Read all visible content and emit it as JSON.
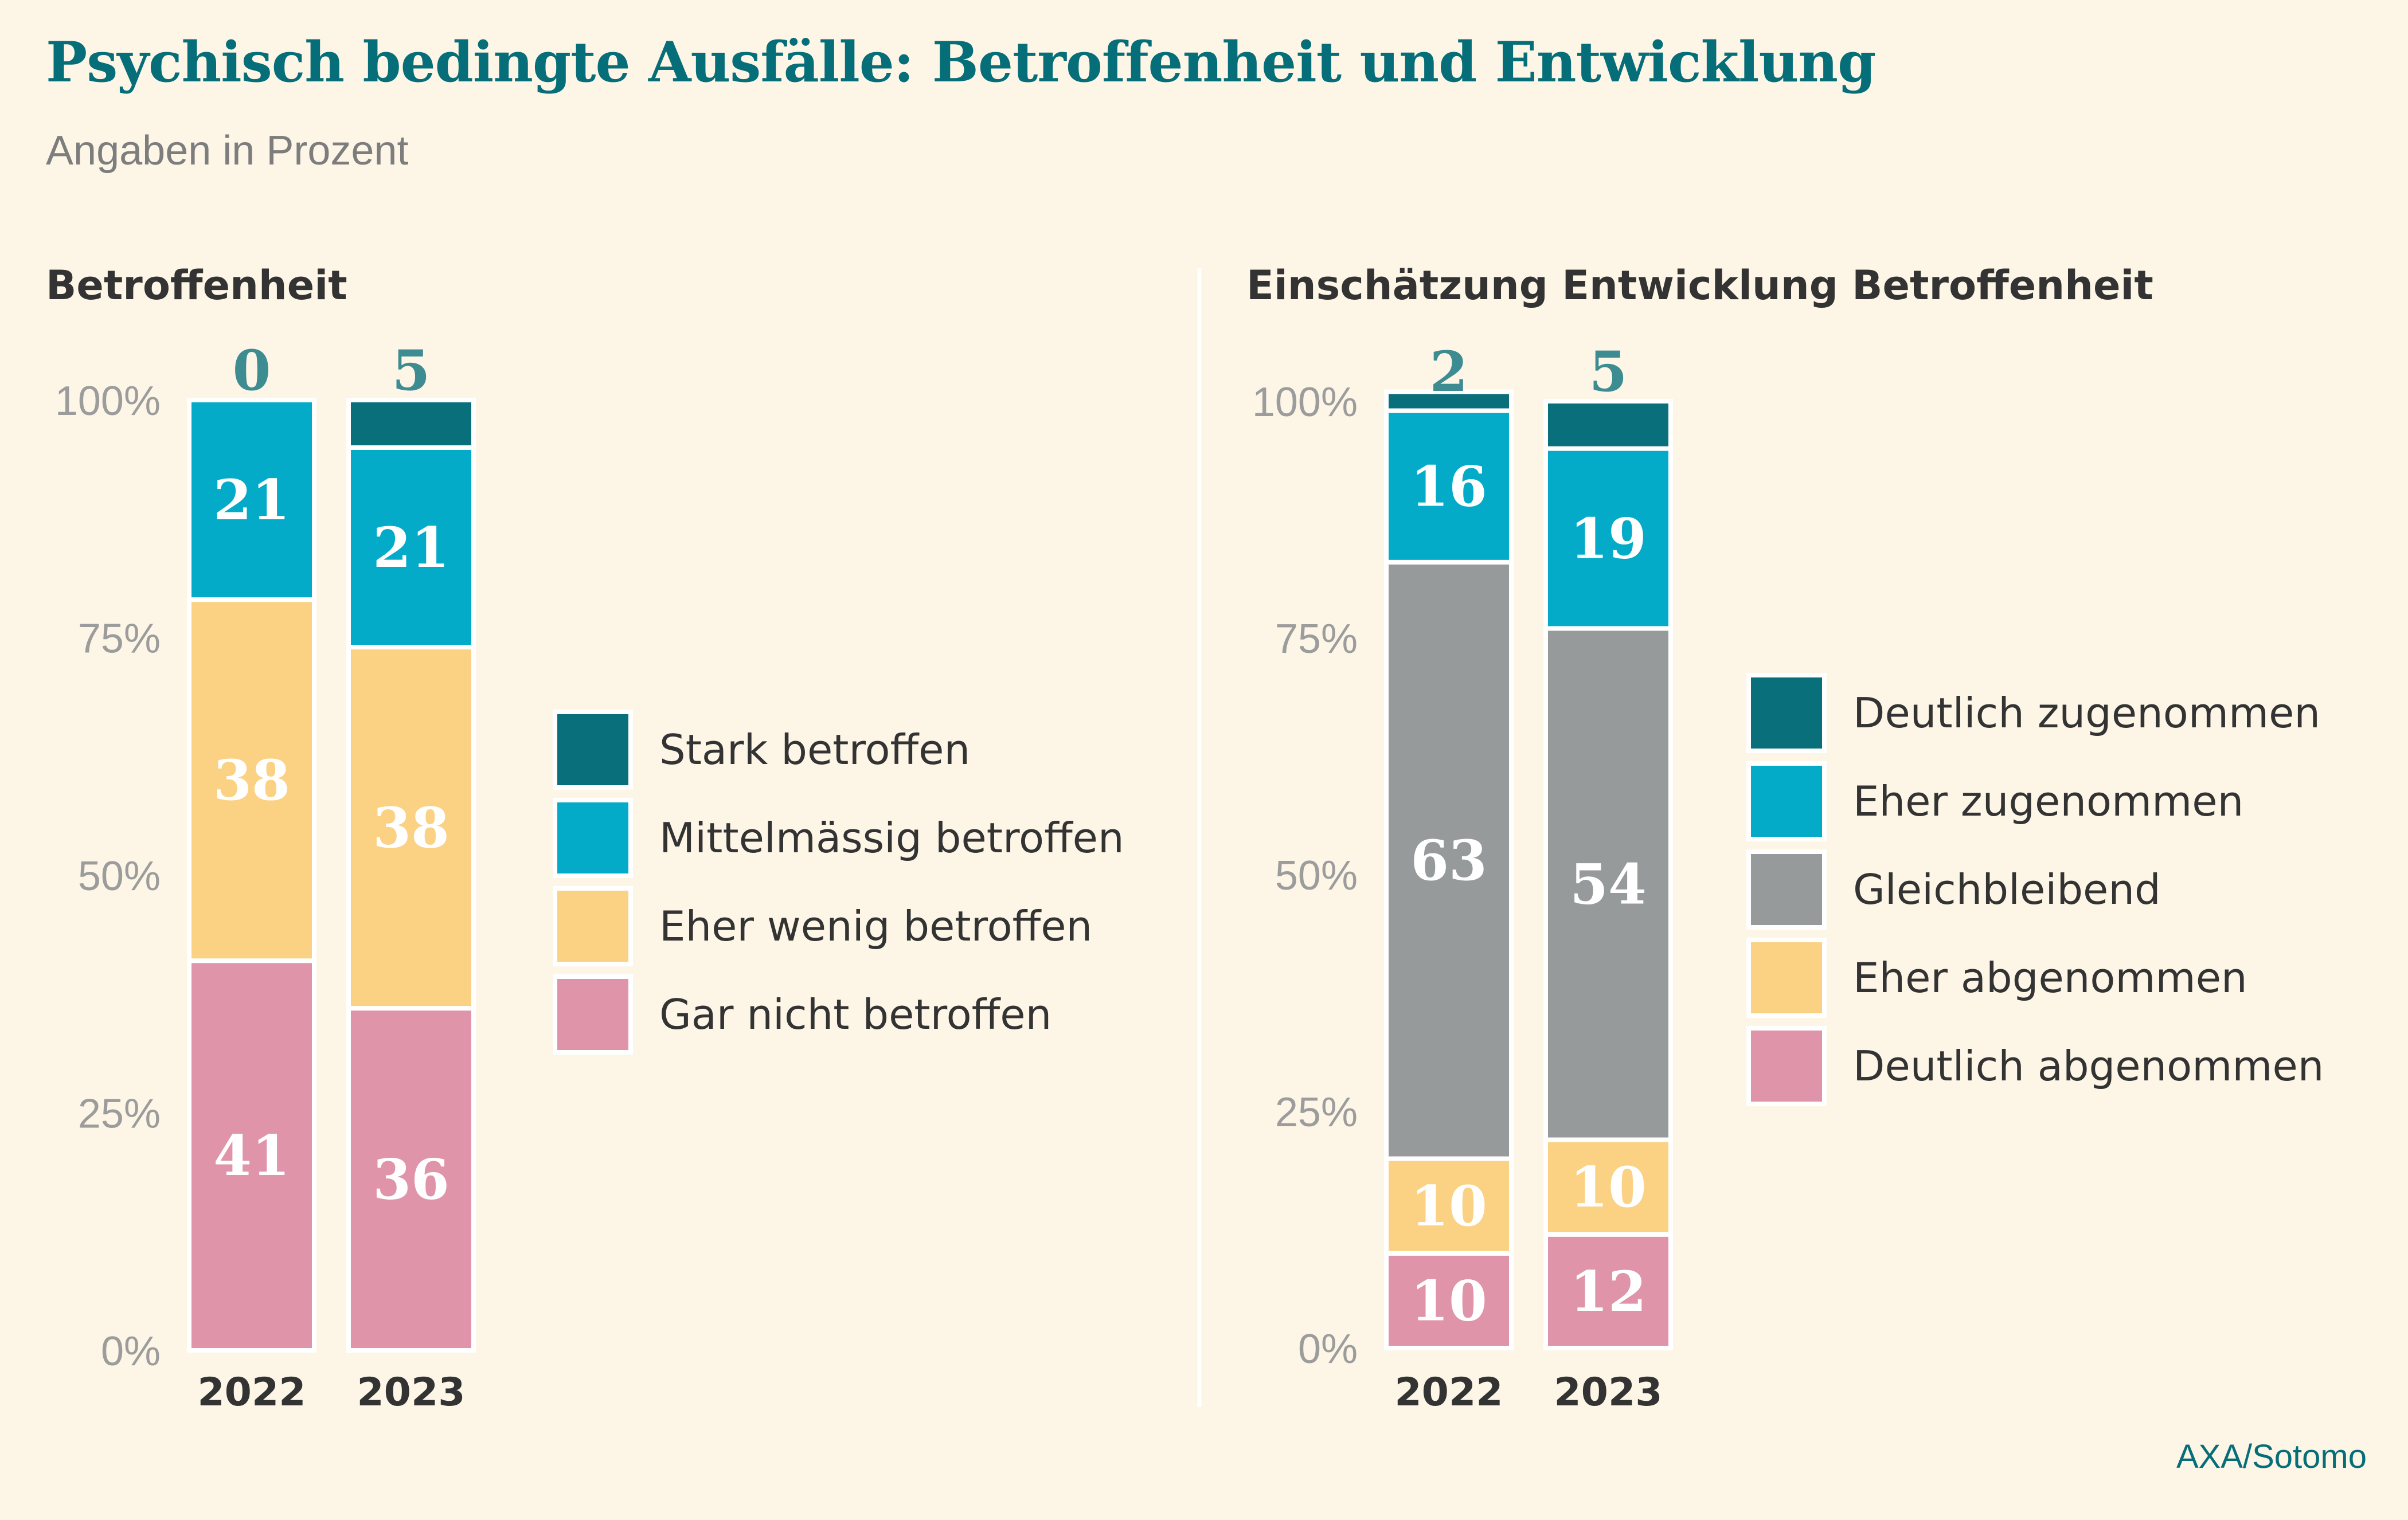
{
  "title": "Psychisch bedingte Ausfälle: Betroffenheit und Entwicklung",
  "subtitle": "Angaben in Prozent",
  "source": "AXA/Sotomo",
  "chart_data": [
    {
      "type": "bar",
      "stacked": true,
      "title": "Betroffenheit",
      "categories": [
        "2022",
        "2023"
      ],
      "ylim": [
        0,
        100
      ],
      "yticks": [
        "0%",
        "25%",
        "50%",
        "75%",
        "100%"
      ],
      "legend_position": "right",
      "series": [
        {
          "name": "Stark betroffen",
          "values": [
            0,
            5
          ],
          "color": "#086f7b"
        },
        {
          "name": "Mittelmässig betroffen",
          "values": [
            21,
            21
          ],
          "color": "#04abc8"
        },
        {
          "name": "Eher wenig betroffen",
          "values": [
            38,
            38
          ],
          "color": "#fbd284"
        },
        {
          "name": "Gar nicht betroffen",
          "values": [
            41,
            36
          ],
          "color": "#e094a9"
        }
      ]
    },
    {
      "type": "bar",
      "stacked": true,
      "title": "Einschätzung Entwicklung Betroffenheit",
      "categories": [
        "2022",
        "2023"
      ],
      "ylim": [
        0,
        100
      ],
      "yticks": [
        "0%",
        "25%",
        "50%",
        "75%",
        "100%"
      ],
      "legend_position": "right",
      "series": [
        {
          "name": "Deutlich zugenommen",
          "values": [
            2,
            5
          ],
          "color": "#086f7b"
        },
        {
          "name": "Eher zugenommen",
          "values": [
            16,
            19
          ],
          "color": "#04abc8"
        },
        {
          "name": "Gleichbleibend",
          "values": [
            63,
            54
          ],
          "color": "#979a9b"
        },
        {
          "name": "Eher abgenommen",
          "values": [
            10,
            10
          ],
          "color": "#fbd284"
        },
        {
          "name": "Deutlich abgenommen",
          "values": [
            10,
            12
          ],
          "color": "#e094a9"
        }
      ]
    }
  ]
}
